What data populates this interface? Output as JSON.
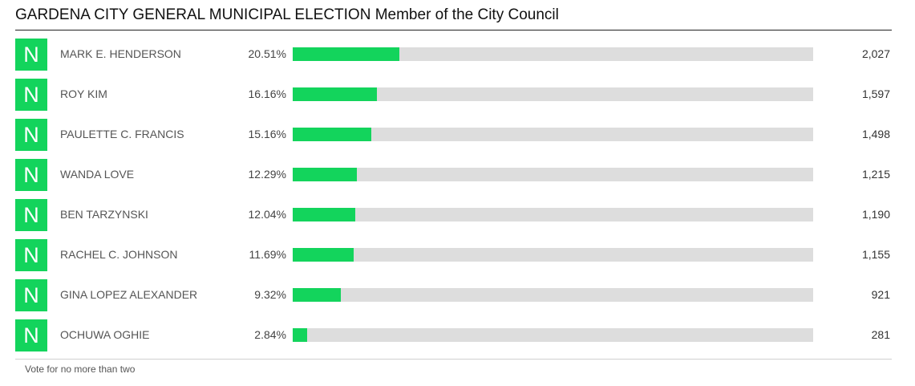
{
  "chart_data": {
    "type": "bar",
    "title": "GARDENA CITY GENERAL MUNICIPAL ELECTION Member of the City Council",
    "categories": [
      "MARK E. HENDERSON",
      "ROY KIM",
      "PAULETTE C. FRANCIS",
      "WANDA LOVE",
      "BEN TARZYNSKI",
      "RACHEL C. JOHNSON",
      "GINA LOPEZ ALEXANDER",
      "OCHUWA OGHIE"
    ],
    "series": [
      {
        "values": [
          20.51,
          16.16,
          15.16,
          12.29,
          12.04,
          11.69,
          9.32,
          2.84
        ]
      }
    ],
    "xlim": [
      0,
      100
    ],
    "grid": false,
    "candidates": [
      {
        "badge": "N",
        "name": "MARK E. HENDERSON",
        "percent": 20.51,
        "percent_label": "20.51%",
        "votes": "2,027"
      },
      {
        "badge": "N",
        "name": "ROY KIM",
        "percent": 16.16,
        "percent_label": "16.16%",
        "votes": "1,597"
      },
      {
        "badge": "N",
        "name": "PAULETTE C. FRANCIS",
        "percent": 15.16,
        "percent_label": "15.16%",
        "votes": "1,498"
      },
      {
        "badge": "N",
        "name": "WANDA LOVE",
        "percent": 12.29,
        "percent_label": "12.29%",
        "votes": "1,215"
      },
      {
        "badge": "N",
        "name": "BEN TARZYNSKI",
        "percent": 12.04,
        "percent_label": "12.04%",
        "votes": "1,190"
      },
      {
        "badge": "N",
        "name": "RACHEL C. JOHNSON",
        "percent": 11.69,
        "percent_label": "11.69%",
        "votes": "1,155"
      },
      {
        "badge": "N",
        "name": "GINA LOPEZ ALEXANDER",
        "percent": 9.32,
        "percent_label": "9.32%",
        "votes": "921"
      },
      {
        "badge": "N",
        "name": "OCHUWA OGHIE",
        "percent": 2.84,
        "percent_label": "2.84%",
        "votes": "281"
      }
    ],
    "footnote": "Vote for no more than two",
    "colors": {
      "bar": "#13d45c",
      "track": "#dddddd",
      "badge": "#13d45c"
    }
  }
}
